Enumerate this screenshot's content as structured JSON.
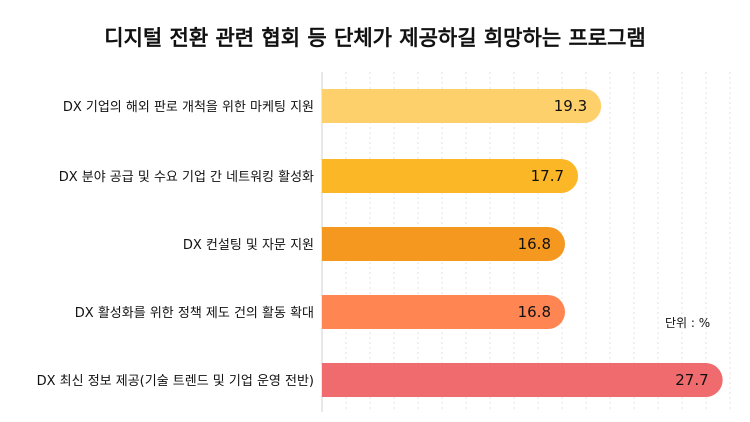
{
  "chart_data": {
    "type": "bar",
    "orientation": "horizontal",
    "title": "디지털 전환 관련 협회 등 단체가 제공하길 희망하는 프로그램",
    "unit_label": "단위 : %",
    "categories": [
      "DX 기업의 해외 판로 개척을 위한 마케팅 지원",
      "DX 분야 공급 및 수요 기업 간 네트워킹 활성화",
      "DX 컨설팅 및 자문 지원",
      "DX 활성화를 위한 정책 제도 건의 활동 확대",
      "DX 최신 정보 제공(기술 트렌드 및 기업 운영 전반)"
    ],
    "values": [
      19.3,
      17.7,
      16.8,
      16.8,
      27.7
    ],
    "value_labels": [
      "19.3",
      "17.7",
      "16.8",
      "16.8",
      "27.7"
    ],
    "bar_colors": [
      "#FED06B",
      "#FBB726",
      "#F5981F",
      "#FF8552",
      "#F06B6E"
    ],
    "grid": true,
    "grid_color": "#e3e3e3",
    "xlim": [
      0,
      28
    ]
  }
}
